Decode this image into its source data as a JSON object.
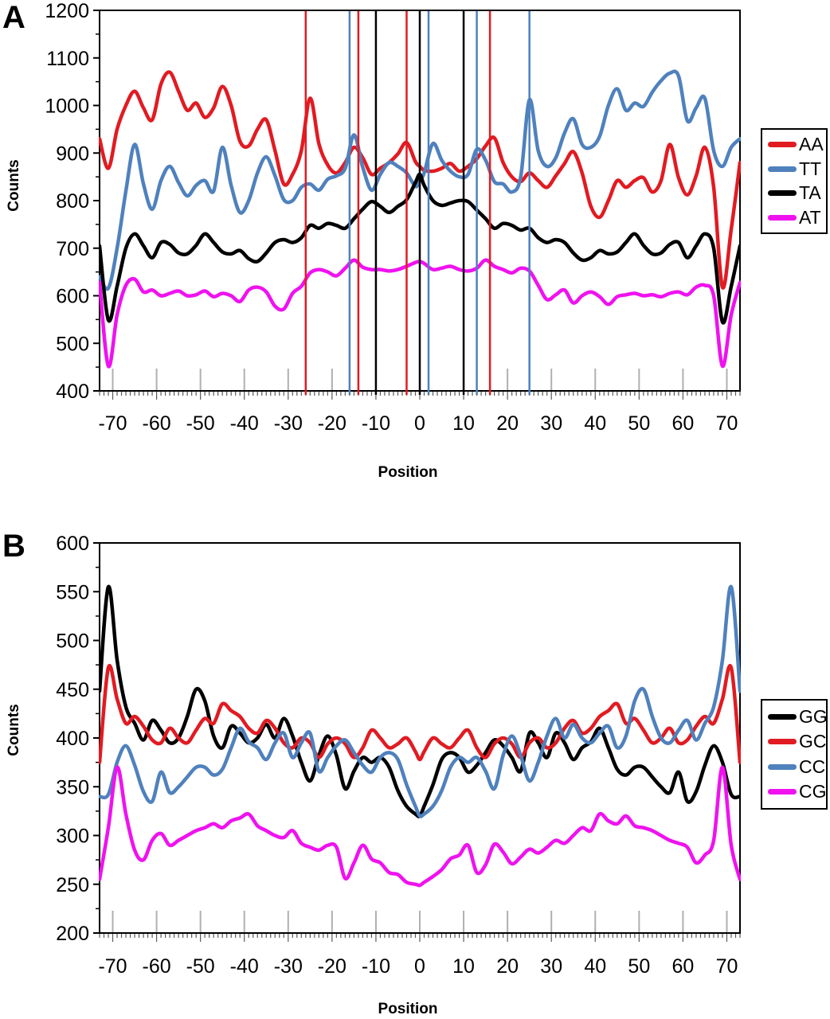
{
  "figure": {
    "background": "#ffffff",
    "tick_color_major_x": "#b0b0b0",
    "tick_color_minor_x": "#595959",
    "axis_color": "#000000"
  },
  "chart_data": [
    {
      "panel": "A",
      "type": "line",
      "title": "",
      "xlabel": "Position",
      "ylabel": "Counts",
      "xlim": [
        -73,
        73
      ],
      "ylim": [
        400,
        1200
      ],
      "grid": false,
      "legend_position": "right",
      "x_ticks": [
        -70,
        -60,
        -50,
        -40,
        -30,
        -20,
        -10,
        0,
        10,
        20,
        30,
        40,
        50,
        60,
        70
      ],
      "y_ticks": [
        400,
        500,
        600,
        700,
        800,
        900,
        1000,
        1100,
        1200
      ],
      "x": [
        -73,
        -71,
        -69,
        -67,
        -65,
        -63,
        -61,
        -59,
        -57,
        -55,
        -53,
        -51,
        -49,
        -47,
        -45,
        -43,
        -41,
        -39,
        -37,
        -35,
        -33,
        -31,
        -29,
        -27,
        -25,
        -23,
        -21,
        -19,
        -17,
        -15,
        -13,
        -11,
        -9,
        -7,
        -5,
        -3,
        -1,
        0,
        1,
        3,
        5,
        7,
        9,
        11,
        13,
        15,
        17,
        19,
        21,
        23,
        25,
        27,
        29,
        31,
        33,
        35,
        37,
        39,
        41,
        43,
        45,
        47,
        49,
        51,
        53,
        55,
        57,
        59,
        61,
        63,
        65,
        67,
        69,
        71,
        73
      ],
      "series": [
        {
          "name": "AA",
          "color": "#e11b22",
          "values": [
            930,
            868,
            950,
            1000,
            1030,
            995,
            970,
            1045,
            1070,
            1030,
            990,
            1005,
            975,
            995,
            1040,
            1000,
            925,
            915,
            950,
            970,
            905,
            835,
            855,
            905,
            1015,
            920,
            875,
            858,
            880,
            912,
            890,
            855,
            868,
            880,
            898,
            922,
            882,
            872,
            864,
            862,
            868,
            878,
            862,
            872,
            888,
            915,
            932,
            880,
            850,
            840,
            858,
            842,
            828,
            852,
            878,
            903,
            858,
            788,
            765,
            800,
            842,
            828,
            842,
            848,
            818,
            842,
            918,
            848,
            812,
            852,
            912,
            828,
            618,
            740,
            880
          ]
        },
        {
          "name": "TT",
          "color": "#4f81bd",
          "values": [
            640,
            616,
            700,
            820,
            918,
            835,
            782,
            842,
            872,
            838,
            810,
            832,
            842,
            820,
            912,
            832,
            775,
            800,
            858,
            892,
            852,
            802,
            800,
            828,
            835,
            822,
            845,
            852,
            868,
            938,
            870,
            822,
            855,
            880,
            872,
            858,
            830,
            842,
            858,
            920,
            885,
            862,
            850,
            855,
            908,
            885,
            840,
            835,
            818,
            850,
            1012,
            905,
            872,
            890,
            942,
            972,
            918,
            912,
            935,
            1000,
            1035,
            990,
            1005,
            998,
            1028,
            1052,
            1068,
            1062,
            968,
            995,
            1015,
            905,
            872,
            912,
            930
          ]
        },
        {
          "name": "TA",
          "color": "#000000",
          "values": [
            705,
            549,
            620,
            700,
            730,
            705,
            680,
            712,
            708,
            690,
            688,
            706,
            730,
            712,
            692,
            688,
            695,
            678,
            672,
            690,
            712,
            718,
            712,
            722,
            748,
            742,
            752,
            748,
            742,
            762,
            782,
            798,
            788,
            775,
            788,
            802,
            838,
            855,
            832,
            800,
            790,
            795,
            800,
            798,
            780,
            762,
            742,
            752,
            748,
            738,
            742,
            722,
            712,
            718,
            712,
            690,
            675,
            680,
            695,
            688,
            692,
            712,
            730,
            706,
            688,
            690,
            708,
            712,
            680,
            705,
            730,
            700,
            545,
            620,
            705
          ]
        },
        {
          "name": "AT",
          "color": "#ef12ef",
          "values": [
            628,
            452,
            560,
            622,
            635,
            608,
            612,
            600,
            605,
            610,
            600,
            602,
            610,
            598,
            605,
            600,
            588,
            612,
            618,
            608,
            578,
            572,
            605,
            620,
            648,
            655,
            650,
            642,
            658,
            675,
            660,
            655,
            655,
            652,
            655,
            662,
            670,
            672,
            668,
            655,
            658,
            662,
            655,
            652,
            658,
            675,
            662,
            655,
            648,
            658,
            652,
            622,
            592,
            602,
            612,
            585,
            600,
            608,
            598,
            582,
            598,
            602,
            605,
            600,
            602,
            598,
            605,
            608,
            602,
            618,
            622,
            600,
            452,
            560,
            628
          ]
        }
      ],
      "vlines": [
        {
          "x": -26,
          "series": "AA"
        },
        {
          "x": -16,
          "series": "TT"
        },
        {
          "x": -14,
          "series": "AA"
        },
        {
          "x": -10,
          "series": "TA"
        },
        {
          "x": -3,
          "series": "AA"
        },
        {
          "x": 0,
          "series": "TA"
        },
        {
          "x": 2,
          "series": "TT"
        },
        {
          "x": 10,
          "series": "TA"
        },
        {
          "x": 13,
          "series": "TT"
        },
        {
          "x": 16,
          "series": "AA"
        },
        {
          "x": 25,
          "series": "TT"
        }
      ]
    },
    {
      "panel": "B",
      "type": "line",
      "title": "",
      "xlabel": "Position",
      "ylabel": "Counts",
      "xlim": [
        -73,
        73
      ],
      "ylim": [
        200,
        600
      ],
      "grid": false,
      "legend_position": "right",
      "x_ticks": [
        -70,
        -60,
        -50,
        -40,
        -30,
        -20,
        -10,
        0,
        10,
        20,
        30,
        40,
        50,
        60,
        70
      ],
      "y_ticks": [
        200,
        250,
        300,
        350,
        400,
        450,
        500,
        550,
        600
      ],
      "x": [
        -73,
        -71,
        -69,
        -67,
        -65,
        -63,
        -61,
        -59,
        -57,
        -55,
        -53,
        -51,
        -49,
        -47,
        -45,
        -43,
        -41,
        -39,
        -37,
        -35,
        -33,
        -31,
        -29,
        -27,
        -25,
        -23,
        -21,
        -19,
        -17,
        -15,
        -13,
        -11,
        -9,
        -7,
        -5,
        -3,
        -1,
        0,
        1,
        3,
        5,
        7,
        9,
        11,
        13,
        15,
        17,
        19,
        21,
        23,
        25,
        27,
        29,
        31,
        33,
        35,
        37,
        39,
        41,
        43,
        45,
        47,
        49,
        51,
        53,
        55,
        57,
        59,
        61,
        63,
        65,
        67,
        69,
        71,
        73
      ],
      "series": [
        {
          "name": "GG",
          "color": "#000000",
          "values": [
            448,
            555,
            480,
            432,
            415,
            398,
            418,
            408,
            395,
            400,
            422,
            450,
            438,
            402,
            390,
            412,
            405,
            395,
            400,
            414,
            400,
            420,
            402,
            375,
            356,
            382,
            402,
            382,
            348,
            366,
            380,
            375,
            380,
            370,
            346,
            330,
            322,
            320,
            330,
            352,
            378,
            385,
            380,
            365,
            372,
            385,
            398,
            392,
            380,
            366,
            405,
            395,
            380,
            405,
            395,
            378,
            390,
            396,
            410,
            390,
            368,
            362,
            370,
            370,
            360,
            350,
            344,
            365,
            335,
            345,
            372,
            392,
            375,
            342,
            340
          ]
        },
        {
          "name": "GC",
          "color": "#e11b22",
          "values": [
            375,
            472,
            440,
            415,
            422,
            412,
            398,
            395,
            410,
            400,
            395,
            408,
            420,
            415,
            435,
            428,
            422,
            410,
            405,
            418,
            410,
            395,
            390,
            400,
            395,
            380,
            394,
            400,
            394,
            380,
            390,
            408,
            400,
            390,
            394,
            400,
            386,
            378,
            386,
            400,
            394,
            390,
            400,
            408,
            390,
            380,
            394,
            400,
            394,
            380,
            395,
            400,
            390,
            395,
            410,
            418,
            405,
            410,
            422,
            428,
            435,
            415,
            420,
            408,
            395,
            400,
            410,
            395,
            398,
            412,
            422,
            415,
            440,
            472,
            375
          ]
        },
        {
          "name": "CC",
          "color": "#4f81bd",
          "values": [
            340,
            342,
            375,
            392,
            372,
            345,
            335,
            365,
            344,
            350,
            360,
            370,
            370,
            362,
            368,
            390,
            410,
            396,
            390,
            378,
            395,
            405,
            380,
            395,
            405,
            366,
            380,
            392,
            398,
            385,
            372,
            365,
            380,
            385,
            378,
            352,
            330,
            320,
            322,
            330,
            346,
            370,
            380,
            375,
            380,
            366,
            348,
            382,
            402,
            382,
            356,
            375,
            402,
            420,
            400,
            414,
            400,
            395,
            405,
            412,
            390,
            402,
            438,
            450,
            422,
            400,
            395,
            408,
            418,
            398,
            415,
            432,
            480,
            555,
            448
          ]
        },
        {
          "name": "CG",
          "color": "#ef12ef",
          "values": [
            255,
            308,
            370,
            322,
            285,
            275,
            295,
            302,
            290,
            295,
            300,
            305,
            308,
            312,
            308,
            315,
            318,
            322,
            310,
            305,
            300,
            298,
            305,
            292,
            288,
            285,
            290,
            288,
            256,
            272,
            290,
            276,
            272,
            262,
            260,
            252,
            250,
            249,
            252,
            258,
            265,
            276,
            280,
            290,
            262,
            270,
            291,
            283,
            271,
            278,
            286,
            282,
            288,
            295,
            292,
            300,
            308,
            305,
            322,
            315,
            312,
            320,
            310,
            308,
            305,
            300,
            295,
            292,
            288,
            272,
            280,
            295,
            370,
            290,
            255
          ]
        }
      ],
      "vlines": []
    }
  ]
}
